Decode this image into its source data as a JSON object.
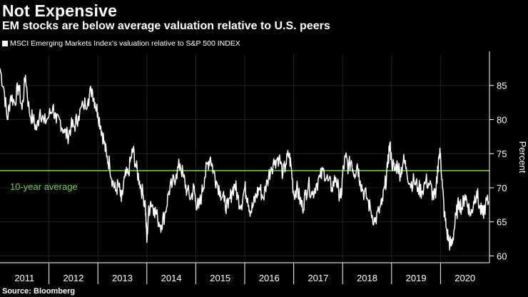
{
  "colors": {
    "background": "#000000",
    "series": "#ffffff",
    "average_line": "#7ac943",
    "gridline": "#222222",
    "axis": "#ffffff"
  },
  "chart_data": {
    "type": "line",
    "title": "Not Expensive",
    "subtitle": "EM stocks are below average valuation relative to U.S. peers",
    "legend": [
      "MSCI Emerging Markets Index's valuation relative to S&P 500 INDEX"
    ],
    "ylabel": "Percent",
    "xlabel": "",
    "ylim": [
      59,
      90
    ],
    "yticks": [
      60,
      65,
      70,
      75,
      80,
      85
    ],
    "xlim": [
      2011.0,
      2021.0
    ],
    "x_tick_labels": [
      "2011",
      "2012",
      "2013",
      "2014",
      "2015",
      "2016",
      "2017",
      "2018",
      "2019",
      "2020"
    ],
    "reference_line": {
      "label": "10-year average",
      "value": 72.5
    },
    "source": "Source: Bloomberg",
    "series": [
      {
        "name": "MSCI Emerging Markets Index's valuation relative to S&P 500 INDEX",
        "points": [
          [
            2011.0,
            87.5
          ],
          [
            2011.08,
            84.5
          ],
          [
            2011.15,
            80.0
          ],
          [
            2011.22,
            83.5
          ],
          [
            2011.3,
            82.5
          ],
          [
            2011.38,
            85.0
          ],
          [
            2011.45,
            81.5
          ],
          [
            2011.52,
            86.5
          ],
          [
            2011.6,
            81.0
          ],
          [
            2011.68,
            80.0
          ],
          [
            2011.75,
            78.5
          ],
          [
            2011.82,
            81.5
          ],
          [
            2011.9,
            79.5
          ],
          [
            2012.0,
            80.5
          ],
          [
            2012.08,
            82.0
          ],
          [
            2012.15,
            79.5
          ],
          [
            2012.22,
            80.0
          ],
          [
            2012.3,
            78.5
          ],
          [
            2012.38,
            77.5
          ],
          [
            2012.45,
            79.0
          ],
          [
            2012.52,
            79.0
          ],
          [
            2012.6,
            80.5
          ],
          [
            2012.7,
            82.0
          ],
          [
            2012.8,
            83.0
          ],
          [
            2012.88,
            84.5
          ],
          [
            2012.94,
            82.5
          ],
          [
            2013.0,
            81.0
          ],
          [
            2013.06,
            79.0
          ],
          [
            2013.12,
            77.0
          ],
          [
            2013.18,
            74.5
          ],
          [
            2013.24,
            73.5
          ],
          [
            2013.3,
            71.0
          ],
          [
            2013.36,
            69.5
          ],
          [
            2013.42,
            70.5
          ],
          [
            2013.48,
            68.0
          ],
          [
            2013.55,
            71.5
          ],
          [
            2013.62,
            72.0
          ],
          [
            2013.68,
            74.5
          ],
          [
            2013.72,
            75.5
          ],
          [
            2013.78,
            73.0
          ],
          [
            2013.85,
            71.0
          ],
          [
            2013.92,
            69.0
          ],
          [
            2013.97,
            67.5
          ],
          [
            2014.0,
            62.0
          ],
          [
            2014.03,
            66.0
          ],
          [
            2014.08,
            68.0
          ],
          [
            2014.15,
            67.0
          ],
          [
            2014.22,
            65.5
          ],
          [
            2014.3,
            64.5
          ],
          [
            2014.38,
            66.5
          ],
          [
            2014.45,
            69.5
          ],
          [
            2014.52,
            70.5
          ],
          [
            2014.6,
            72.0
          ],
          [
            2014.68,
            73.5
          ],
          [
            2014.75,
            71.5
          ],
          [
            2014.82,
            69.5
          ],
          [
            2014.9,
            68.5
          ],
          [
            2014.96,
            70.0
          ],
          [
            2015.0,
            68.0
          ],
          [
            2015.06,
            67.0
          ],
          [
            2015.12,
            69.0
          ],
          [
            2015.18,
            71.5
          ],
          [
            2015.24,
            73.5
          ],
          [
            2015.3,
            74.5
          ],
          [
            2015.36,
            72.5
          ],
          [
            2015.42,
            71.0
          ],
          [
            2015.5,
            69.5
          ],
          [
            2015.58,
            68.0
          ],
          [
            2015.66,
            67.0
          ],
          [
            2015.74,
            69.5
          ],
          [
            2015.8,
            70.5
          ],
          [
            2015.86,
            68.5
          ],
          [
            2015.93,
            67.5
          ],
          [
            2016.0,
            70.0
          ],
          [
            2016.06,
            68.5
          ],
          [
            2016.12,
            66.5
          ],
          [
            2016.18,
            67.5
          ],
          [
            2016.24,
            69.0
          ],
          [
            2016.3,
            70.0
          ],
          [
            2016.38,
            68.5
          ],
          [
            2016.46,
            71.0
          ],
          [
            2016.54,
            73.0
          ],
          [
            2016.62,
            74.0
          ],
          [
            2016.7,
            74.5
          ],
          [
            2016.78,
            72.0
          ],
          [
            2016.84,
            73.5
          ],
          [
            2016.9,
            75.0
          ],
          [
            2016.95,
            73.0
          ],
          [
            2017.0,
            69.0
          ],
          [
            2017.06,
            70.0
          ],
          [
            2017.12,
            68.5
          ],
          [
            2017.18,
            67.0
          ],
          [
            2017.24,
            69.0
          ],
          [
            2017.3,
            70.5
          ],
          [
            2017.38,
            69.0
          ],
          [
            2017.46,
            70.5
          ],
          [
            2017.54,
            71.5
          ],
          [
            2017.62,
            72.5
          ],
          [
            2017.7,
            71.0
          ],
          [
            2017.78,
            70.0
          ],
          [
            2017.86,
            71.5
          ],
          [
            2017.92,
            69.5
          ],
          [
            2017.97,
            68.5
          ],
          [
            2018.0,
            72.0
          ],
          [
            2018.06,
            74.5
          ],
          [
            2018.12,
            73.0
          ],
          [
            2018.18,
            74.0
          ],
          [
            2018.24,
            72.0
          ],
          [
            2018.3,
            73.5
          ],
          [
            2018.36,
            71.0
          ],
          [
            2018.42,
            69.5
          ],
          [
            2018.5,
            68.5
          ],
          [
            2018.58,
            66.5
          ],
          [
            2018.66,
            65.0
          ],
          [
            2018.74,
            66.5
          ],
          [
            2018.8,
            67.5
          ],
          [
            2018.86,
            70.0
          ],
          [
            2018.92,
            73.0
          ],
          [
            2018.96,
            76.5
          ],
          [
            2019.0,
            74.0
          ],
          [
            2019.06,
            72.5
          ],
          [
            2019.12,
            73.5
          ],
          [
            2019.18,
            72.0
          ],
          [
            2019.24,
            74.0
          ],
          [
            2019.3,
            73.0
          ],
          [
            2019.38,
            70.5
          ],
          [
            2019.46,
            71.0
          ],
          [
            2019.54,
            70.0
          ],
          [
            2019.62,
            69.5
          ],
          [
            2019.7,
            71.0
          ],
          [
            2019.78,
            70.5
          ],
          [
            2019.84,
            69.0
          ],
          [
            2019.9,
            68.5
          ],
          [
            2019.96,
            74.5
          ],
          [
            2020.0,
            75.0
          ],
          [
            2020.04,
            70.0
          ],
          [
            2020.08,
            66.0
          ],
          [
            2020.13,
            63.5
          ],
          [
            2020.18,
            62.0
          ],
          [
            2020.22,
            61.5
          ],
          [
            2020.27,
            63.5
          ],
          [
            2020.32,
            66.0
          ],
          [
            2020.38,
            68.0
          ],
          [
            2020.44,
            67.0
          ],
          [
            2020.5,
            69.0
          ],
          [
            2020.56,
            67.5
          ],
          [
            2020.62,
            66.0
          ],
          [
            2020.68,
            68.0
          ],
          [
            2020.74,
            69.5
          ],
          [
            2020.8,
            67.0
          ],
          [
            2020.86,
            66.0
          ],
          [
            2020.92,
            67.5
          ],
          [
            2020.98,
            68.0
          ]
        ]
      }
    ]
  }
}
